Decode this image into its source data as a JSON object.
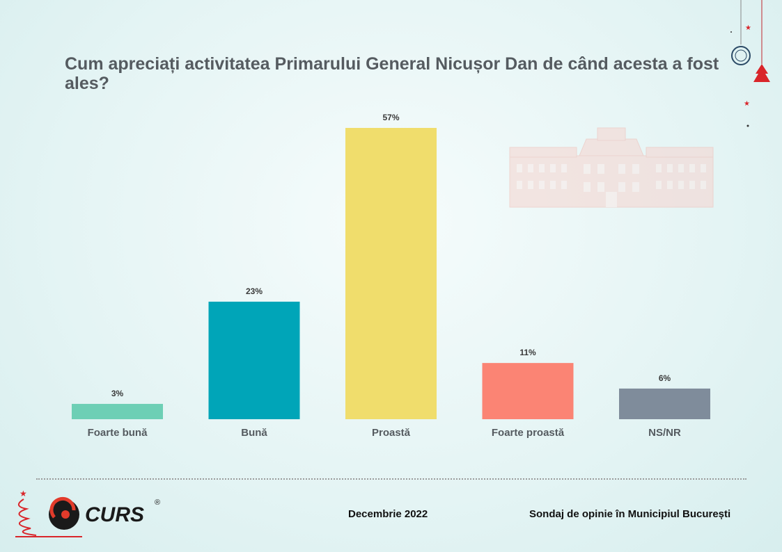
{
  "title": "Cum apreciați activitatea Primarului General Nicușor Dan de când acesta a fost ales?",
  "chart_data": {
    "type": "bar",
    "categories": [
      "Foarte bună",
      "Bună",
      "Proastă",
      "Foarte proastă",
      "NS/NR"
    ],
    "values": [
      3,
      23,
      57,
      11,
      6
    ],
    "data_labels": [
      "3%",
      "23%",
      "57%",
      "11%",
      "6%"
    ],
    "colors": [
      "#6dcfb5",
      "#00a5b8",
      "#f0dd6c",
      "#fb8474",
      "#7f8c9b"
    ],
    "title": "Cum apreciați activitatea Primarului General Nicușor Dan de când acesta a fost ales?",
    "xlabel": "",
    "ylabel": "",
    "ylim": [
      0,
      57
    ],
    "grid": false,
    "legend": "none"
  },
  "footer": {
    "date": "Decembrie 2022",
    "survey": "Sondaj de opinie în Municipiul București",
    "logo_text": "CURS",
    "registered": "®"
  },
  "colors": {
    "title": "#555b60",
    "accent_red": "#d9252a"
  }
}
